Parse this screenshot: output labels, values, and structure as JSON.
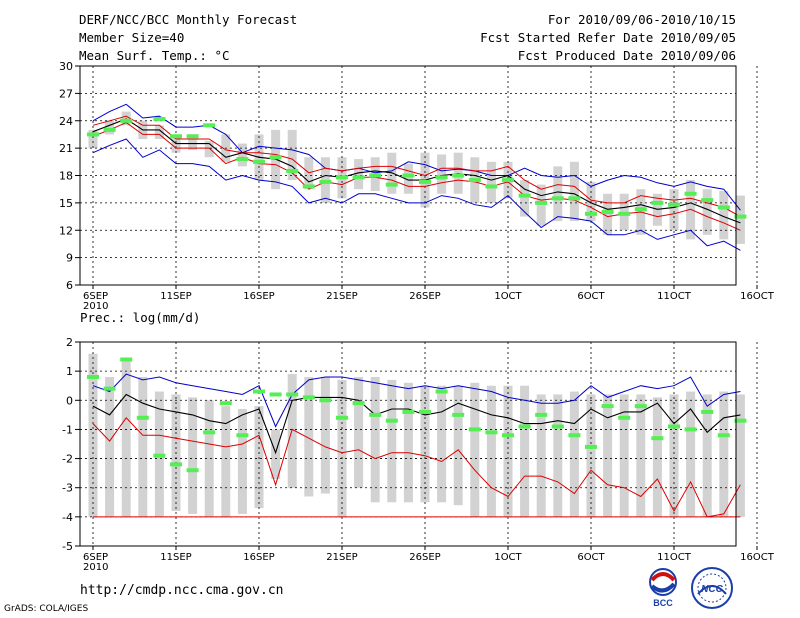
{
  "header": {
    "title": "DERF/NCC/BCC Monthly Forecast",
    "member_size": "Member Size=40",
    "variable": "Mean Surf. Temp.: °C",
    "period": "For 2010/09/06-2010/10/15",
    "started": "Fcst Started Refer Date 2010/09/05",
    "produced": "Fcst Produced Date 2010/09/06"
  },
  "footer": {
    "url": "http://cmdp.ncc.cma.gov.cn",
    "credit": "GrADS: COLA/IGES",
    "logo_bcc": "BCC",
    "logo_ncc": "NCC"
  },
  "colors": {
    "envelope": "#0000cc",
    "spread": "#dd0000",
    "mean": "#000000",
    "marker": "#55ee55",
    "bar": "#d2d2d2"
  },
  "chart_data": [
    {
      "type": "line",
      "title": "Mean Surf. Temp.: °C",
      "xlabels": [
        "6SEP\n2010",
        "11SEP",
        "16SEP",
        "21SEP",
        "26SEP",
        "1OCT",
        "6OCT",
        "11OCT",
        "16OCT"
      ],
      "ylim": [
        6,
        30
      ],
      "yticks": [
        6,
        9,
        12,
        15,
        18,
        21,
        24,
        27,
        30
      ],
      "days": 40,
      "series": [
        {
          "name": "max",
          "values": [
            24.0,
            25.0,
            25.8,
            24.3,
            24.5,
            23.3,
            23.3,
            23.5,
            22.5,
            20.5,
            21.2,
            21.0,
            20.8,
            20.3,
            18.8,
            18.5,
            18.8,
            18.3,
            18.5,
            19.5,
            19.2,
            18.5,
            18.7,
            18.5,
            18.0,
            18.0,
            18.8,
            18.0,
            17.8,
            18.0,
            16.8,
            17.5,
            18.0,
            17.8,
            17.2,
            16.8,
            17.3,
            16.8,
            16.5,
            14.2
          ]
        },
        {
          "name": "upper",
          "values": [
            23.5,
            24.0,
            24.5,
            23.5,
            23.5,
            22.0,
            22.0,
            22.0,
            20.8,
            20.5,
            20.5,
            20.3,
            19.8,
            18.3,
            18.8,
            18.5,
            18.8,
            19.0,
            19.0,
            18.5,
            18.0,
            18.8,
            18.8,
            18.5,
            18.5,
            19.0,
            17.5,
            16.5,
            17.0,
            16.8,
            15.3,
            15.0,
            15.0,
            15.8,
            15.5,
            15.3,
            15.5,
            15.0,
            14.5,
            13.5
          ]
        },
        {
          "name": "mean",
          "values": [
            22.8,
            23.5,
            24.2,
            23.0,
            23.0,
            21.5,
            21.5,
            21.5,
            20.0,
            20.5,
            20.0,
            19.8,
            19.0,
            17.3,
            18.0,
            17.8,
            18.3,
            18.5,
            18.3,
            17.5,
            17.5,
            18.0,
            18.2,
            18.0,
            17.5,
            18.0,
            16.5,
            15.8,
            16.2,
            16.0,
            15.0,
            14.3,
            14.5,
            14.8,
            14.3,
            14.5,
            15.0,
            14.3,
            13.5,
            12.8
          ]
        },
        {
          "name": "lower",
          "values": [
            22.3,
            23.0,
            23.8,
            22.5,
            22.5,
            21.0,
            21.0,
            21.0,
            19.3,
            20.0,
            19.3,
            19.2,
            18.3,
            16.5,
            17.3,
            17.0,
            17.8,
            17.8,
            17.5,
            16.8,
            16.8,
            17.2,
            17.5,
            17.3,
            16.8,
            17.3,
            15.8,
            15.3,
            15.5,
            15.3,
            14.5,
            13.5,
            13.8,
            14.0,
            13.5,
            13.8,
            14.3,
            13.5,
            12.8,
            12.0
          ]
        },
        {
          "name": "min",
          "values": [
            20.5,
            21.3,
            22.0,
            20.0,
            20.8,
            19.3,
            19.3,
            19.0,
            17.5,
            18.0,
            17.5,
            17.3,
            16.8,
            15.0,
            15.5,
            15.0,
            16.0,
            16.0,
            15.5,
            15.0,
            15.0,
            15.8,
            15.5,
            14.8,
            14.5,
            15.8,
            14.0,
            12.3,
            13.5,
            13.3,
            13.0,
            11.5,
            11.5,
            12.0,
            11.0,
            11.5,
            12.0,
            10.3,
            10.8,
            9.8
          ]
        },
        {
          "name": "bar_top",
          "values": [
            23.0,
            24.0,
            25.0,
            24.0,
            23.5,
            22.5,
            22.0,
            21.8,
            22.5,
            21.5,
            22.5,
            23.0,
            23.0,
            20.0,
            20.0,
            20.0,
            19.8,
            20.0,
            20.5,
            19.3,
            20.5,
            20.3,
            20.5,
            20.0,
            19.5,
            19.5,
            17.5,
            17.0,
            19.0,
            19.5,
            17.3,
            16.0,
            16.0,
            16.5,
            16.0,
            16.5,
            17.5,
            16.5,
            16.3,
            15.8
          ]
        },
        {
          "name": "bar_bottom",
          "values": [
            21.0,
            22.5,
            23.5,
            22.0,
            22.0,
            20.5,
            20.8,
            20.0,
            19.5,
            19.0,
            17.5,
            16.5,
            17.5,
            16.5,
            15.0,
            15.5,
            16.5,
            16.3,
            16.0,
            16.0,
            14.5,
            16.0,
            16.0,
            15.0,
            15.0,
            15.5,
            13.5,
            12.5,
            13.0,
            13.0,
            13.0,
            11.5,
            12.0,
            11.5,
            12.5,
            12.0,
            11.0,
            11.5,
            11.0,
            10.5
          ]
        },
        {
          "name": "marker",
          "values": [
            22.5,
            23.0,
            24.0,
            null,
            24.2,
            22.3,
            22.3,
            23.5,
            null,
            19.8,
            19.5,
            20.0,
            18.5,
            16.8,
            17.3,
            17.8,
            17.8,
            18.0,
            17.0,
            18.0,
            17.3,
            17.8,
            18.0,
            17.5,
            16.8,
            17.5,
            15.8,
            15.0,
            15.5,
            15.5,
            13.8,
            14.0,
            13.8,
            14.3,
            15.0,
            14.8,
            16.0,
            15.3,
            14.5,
            13.5
          ]
        }
      ]
    },
    {
      "type": "line",
      "title": "Prec.: log(mm/d)",
      "xlabels": [
        "6SEP\n2010",
        "11SEP",
        "16SEP",
        "21SEP",
        "26SEP",
        "1OCT",
        "6OCT",
        "11OCT",
        "16OCT"
      ],
      "ylim": [
        -5,
        2
      ],
      "yticks": [
        -5,
        -4,
        -3,
        -2,
        -1,
        0,
        1,
        2
      ],
      "days": 40,
      "series": [
        {
          "name": "max",
          "values": [
            0.5,
            0.3,
            0.9,
            0.7,
            0.8,
            0.6,
            0.5,
            0.4,
            0.3,
            0.2,
            0.5,
            -0.9,
            0.2,
            0.7,
            0.8,
            0.8,
            0.7,
            0.6,
            0.5,
            0.4,
            0.5,
            0.4,
            0.5,
            0.4,
            0.3,
            0.1,
            0.0,
            -0.1,
            -0.1,
            0.0,
            0.5,
            0.1,
            0.3,
            0.5,
            0.4,
            0.5,
            0.8,
            -0.2,
            0.2,
            0.3
          ]
        },
        {
          "name": "mean",
          "values": [
            -0.2,
            -0.5,
            0.2,
            -0.1,
            -0.3,
            -0.4,
            -0.5,
            -0.7,
            -0.8,
            -0.5,
            -0.3,
            -1.8,
            0.0,
            0.1,
            0.1,
            0.1,
            0.0,
            -0.5,
            -0.3,
            -0.3,
            -0.5,
            -0.4,
            -0.1,
            -0.3,
            -0.5,
            -0.6,
            -0.8,
            -0.8,
            -0.7,
            -0.8,
            -0.3,
            -0.6,
            -0.4,
            -0.4,
            -0.1,
            -0.8,
            -0.3,
            -1.1,
            -0.6,
            -0.5
          ]
        },
        {
          "name": "min",
          "values": [
            -0.8,
            -1.4,
            -0.6,
            -1.2,
            -1.2,
            -1.3,
            -1.4,
            -1.5,
            -1.6,
            -1.5,
            -1.2,
            -2.9,
            -1.0,
            -1.3,
            -1.6,
            -1.8,
            -1.7,
            -2.0,
            -1.8,
            -1.8,
            -1.9,
            -2.1,
            -1.7,
            -2.4,
            -3.0,
            -3.3,
            -2.6,
            -2.6,
            -2.8,
            -3.2,
            -2.4,
            -2.9,
            -3.0,
            -3.3,
            -2.7,
            -3.8,
            -2.8,
            -4.0,
            -3.9,
            -2.9
          ]
        },
        {
          "name": "bar_top",
          "values": [
            1.6,
            0.8,
            1.4,
            0.8,
            0.3,
            0.2,
            0.1,
            0.0,
            -0.2,
            -0.3,
            -0.2,
            -1.0,
            0.9,
            0.8,
            0.8,
            0.7,
            0.8,
            0.8,
            0.7,
            0.6,
            0.5,
            0.5,
            0.5,
            0.6,
            0.5,
            0.5,
            0.5,
            0.2,
            0.2,
            0.3,
            0.2,
            0.2,
            0.2,
            0.2,
            0.1,
            0.2,
            0.3,
            0.2,
            0.3,
            0.2
          ]
        },
        {
          "name": "bar_bottom",
          "values": [
            -4.0,
            -4.0,
            -4.0,
            -4.0,
            -4.0,
            -3.8,
            -3.9,
            -4.0,
            -4.0,
            -3.9,
            -3.7,
            -2.7,
            -3.0,
            -3.3,
            -3.2,
            -4.0,
            -3.0,
            -3.5,
            -3.5,
            -3.5,
            -3.5,
            -3.5,
            -3.6,
            -4.0,
            -4.0,
            -4.0,
            -4.0,
            -4.0,
            -4.0,
            -4.0,
            -4.0,
            -4.0,
            -4.0,
            -4.0,
            -4.0,
            -4.0,
            -4.0,
            -4.0,
            -4.0,
            -4.0
          ]
        },
        {
          "name": "marker",
          "values": [
            0.8,
            0.4,
            1.4,
            -0.6,
            -1.9,
            -2.2,
            -2.4,
            -1.1,
            -0.1,
            -1.2,
            0.3,
            0.2,
            0.2,
            0.1,
            0.0,
            -0.6,
            -0.1,
            -0.5,
            -0.7,
            -0.4,
            -0.4,
            0.3,
            -0.5,
            -1.0,
            -1.1,
            -1.2,
            -0.9,
            -0.5,
            -0.9,
            -1.2,
            -1.6,
            -0.2,
            -0.6,
            -0.2,
            -1.3,
            -0.9,
            -1.0,
            -0.4,
            -1.2,
            -0.7
          ]
        },
        {
          "name": "floor",
          "values": [
            -4,
            -4,
            -4,
            -4,
            -4,
            -4,
            -4,
            -4,
            -4,
            -4,
            -4,
            -4,
            -4,
            -4,
            -4,
            -4,
            -4,
            -4,
            -4,
            -4,
            -4,
            -4,
            -4,
            -4,
            -4,
            -4,
            -4,
            -4,
            -4,
            -4,
            -4,
            -4,
            -4,
            -4,
            -4,
            -4,
            -4,
            -4,
            -4,
            -4
          ]
        }
      ]
    }
  ]
}
